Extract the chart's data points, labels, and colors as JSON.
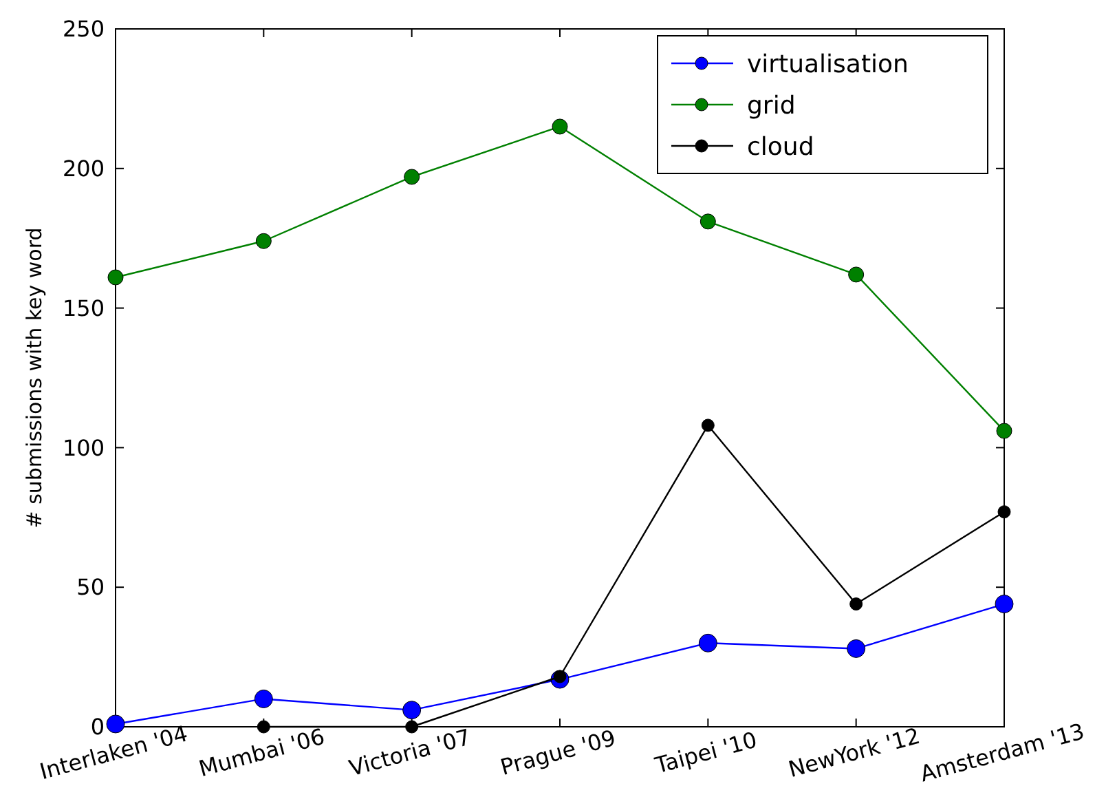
{
  "chart_data": {
    "type": "line",
    "ylabel": "# submissions with key word",
    "categories": [
      "Interlaken '04",
      "Mumbai '06",
      "Victoria '07",
      "Prague '09",
      "Taipei '10",
      "NewYork '12",
      "Amsterdam '13"
    ],
    "series": [
      {
        "name": "virtualisation",
        "color": "#0000ff",
        "values": [
          1,
          10,
          6,
          17,
          30,
          28,
          44
        ]
      },
      {
        "name": "grid",
        "color": "#008000",
        "values": [
          161,
          174,
          197,
          215,
          181,
          162,
          106
        ]
      },
      {
        "name": "cloud",
        "color": "#000000",
        "values": [
          null,
          0,
          0,
          18,
          108,
          44,
          77
        ]
      }
    ],
    "ylim": [
      0,
      250
    ],
    "yticks": [
      0,
      50,
      100,
      150,
      200,
      250
    ],
    "grid": false,
    "legend": "top right",
    "marker": "circle",
    "line_style": "solid"
  }
}
